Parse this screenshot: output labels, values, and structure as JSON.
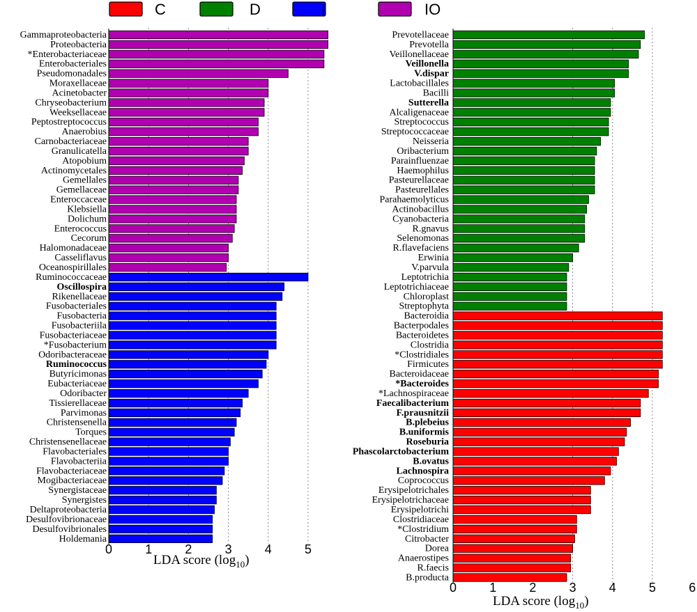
{
  "chart_data": [
    {
      "type": "bar",
      "orientation": "horizontal",
      "panel": "left",
      "xlabel": "LDA score (log",
      "xlabel_sub": "10",
      "xlabel_close": ")",
      "xlim": [
        0,
        5.6
      ],
      "xticks": [
        "0",
        "1",
        "2",
        "3",
        "4",
        "5"
      ],
      "gridlines": [
        1,
        2,
        3,
        4,
        5
      ],
      "bars": [
        {
          "label": "Gammaproteobacteria",
          "value": 5.5,
          "group": "IO",
          "bold": false
        },
        {
          "label": "Proteobacteria",
          "value": 5.5,
          "group": "IO",
          "bold": false
        },
        {
          "label": "*Enterobacteriaceae",
          "value": 5.4,
          "group": "IO",
          "bold": false
        },
        {
          "label": "Enterobacteriales",
          "value": 5.4,
          "group": "IO",
          "bold": false
        },
        {
          "label": "Pseudomonadales",
          "value": 4.5,
          "group": "IO",
          "bold": false
        },
        {
          "label": "Moraxellaceae",
          "value": 4.0,
          "group": "IO",
          "bold": false
        },
        {
          "label": "Acinetobacter",
          "value": 4.0,
          "group": "IO",
          "bold": false
        },
        {
          "label": "Chryseobacterium",
          "value": 3.9,
          "group": "IO",
          "bold": false
        },
        {
          "label": "Weeksellaceae",
          "value": 3.9,
          "group": "IO",
          "bold": false
        },
        {
          "label": "Peptostreptococcus",
          "value": 3.75,
          "group": "IO",
          "bold": false
        },
        {
          "label": "Anaerobius",
          "value": 3.75,
          "group": "IO",
          "bold": false
        },
        {
          "label": "Carnobacteriaceae",
          "value": 3.5,
          "group": "IO",
          "bold": false
        },
        {
          "label": "Granulicatella",
          "value": 3.5,
          "group": "IO",
          "bold": false
        },
        {
          "label": "Atopobium",
          "value": 3.4,
          "group": "IO",
          "bold": false
        },
        {
          "label": "Actinomycetales",
          "value": 3.35,
          "group": "IO",
          "bold": false
        },
        {
          "label": "Gemellales",
          "value": 3.25,
          "group": "IO",
          "bold": false
        },
        {
          "label": "Gemellaceae",
          "value": 3.25,
          "group": "IO",
          "bold": false
        },
        {
          "label": "Enteroccaceae",
          "value": 3.2,
          "group": "IO",
          "bold": false
        },
        {
          "label": "Klebsiella",
          "value": 3.2,
          "group": "IO",
          "bold": false
        },
        {
          "label": "Dolichum",
          "value": 3.2,
          "group": "IO",
          "bold": false
        },
        {
          "label": "Enterococcus",
          "value": 3.15,
          "group": "IO",
          "bold": false
        },
        {
          "label": "Cecorum",
          "value": 3.1,
          "group": "IO",
          "bold": false
        },
        {
          "label": "Halomonadaceae",
          "value": 3.0,
          "group": "IO",
          "bold": false
        },
        {
          "label": "Casseliflavus",
          "value": 3.0,
          "group": "IO",
          "bold": false
        },
        {
          "label": "Oceanospirillales",
          "value": 2.95,
          "group": "IO",
          "bold": false
        },
        {
          "label": "Ruminococcaceae",
          "value": 5.0,
          "group": "I",
          "bold": false
        },
        {
          "label": "Oscillospira",
          "value": 4.4,
          "group": "I",
          "bold": true
        },
        {
          "label": "Rikenellaceae",
          "value": 4.35,
          "group": "I",
          "bold": false
        },
        {
          "label": "Fusobacteriales",
          "value": 4.2,
          "group": "I",
          "bold": false
        },
        {
          "label": "Fusobacteria",
          "value": 4.2,
          "group": "I",
          "bold": false
        },
        {
          "label": "Fusobacteriila",
          "value": 4.2,
          "group": "I",
          "bold": false
        },
        {
          "label": "Fusobacteriaceae",
          "value": 4.2,
          "group": "I",
          "bold": false
        },
        {
          "label": "*Fusobacterium",
          "value": 4.2,
          "group": "I",
          "bold": false
        },
        {
          "label": "Odoribacteraceae",
          "value": 4.0,
          "group": "I",
          "bold": false
        },
        {
          "label": "Ruminococcus",
          "value": 3.95,
          "group": "I",
          "bold": true
        },
        {
          "label": "Butyricimonas",
          "value": 3.85,
          "group": "I",
          "bold": false
        },
        {
          "label": "Eubacteriaceae",
          "value": 3.75,
          "group": "I",
          "bold": false
        },
        {
          "label": "Odoribacter",
          "value": 3.5,
          "group": "I",
          "bold": false
        },
        {
          "label": "Tissierellaceae",
          "value": 3.35,
          "group": "I",
          "bold": false
        },
        {
          "label": "Parvimonas",
          "value": 3.3,
          "group": "I",
          "bold": false
        },
        {
          "label": "Christensenella",
          "value": 3.2,
          "group": "I",
          "bold": false
        },
        {
          "label": "Torques",
          "value": 3.15,
          "group": "I",
          "bold": false
        },
        {
          "label": "Christensenellaceae",
          "value": 3.05,
          "group": "I",
          "bold": false
        },
        {
          "label": "Flavobacteriales",
          "value": 3.0,
          "group": "I",
          "bold": false
        },
        {
          "label": "Flavobacteriia",
          "value": 3.0,
          "group": "I",
          "bold": false
        },
        {
          "label": "Flavobacteriaceae",
          "value": 2.9,
          "group": "I",
          "bold": false
        },
        {
          "label": "Mogibacteriaceae",
          "value": 2.85,
          "group": "I",
          "bold": false
        },
        {
          "label": "Synergistaceae",
          "value": 2.7,
          "group": "I",
          "bold": false
        },
        {
          "label": "Synergistes",
          "value": 2.7,
          "group": "I",
          "bold": false
        },
        {
          "label": "Deltaproteobacteria",
          "value": 2.65,
          "group": "I",
          "bold": false
        },
        {
          "label": "Desulfovibrionaceae",
          "value": 2.6,
          "group": "I",
          "bold": false
        },
        {
          "label": "Desulfovibrionales",
          "value": 2.6,
          "group": "I",
          "bold": false
        },
        {
          "label": "Holdemania",
          "value": 2.6,
          "group": "I",
          "bold": false
        }
      ]
    },
    {
      "type": "bar",
      "orientation": "horizontal",
      "panel": "right",
      "xlabel": "LDA score (log",
      "xlabel_sub": "10",
      "xlabel_close": ")",
      "xlim": [
        0,
        6
      ],
      "xticks": [
        "0",
        "1",
        "2",
        "3",
        "4",
        "5",
        "6"
      ],
      "gridlines": [
        3,
        4,
        5
      ],
      "bars": [
        {
          "label": "Prevotellaceae",
          "value": 4.8,
          "group": "D",
          "bold": false
        },
        {
          "label": "Prevotella",
          "value": 4.7,
          "group": "D",
          "bold": false
        },
        {
          "label": "Veillonellaceae",
          "value": 4.65,
          "group": "D",
          "bold": false
        },
        {
          "label": "Veillonella",
          "value": 4.4,
          "group": "D",
          "bold": true
        },
        {
          "label": "V.dispar",
          "value": 4.4,
          "group": "D",
          "bold": true
        },
        {
          "label": "Lactobacillales",
          "value": 4.05,
          "group": "D",
          "bold": false
        },
        {
          "label": "Bacilli",
          "value": 4.05,
          "group": "D",
          "bold": false
        },
        {
          "label": "Sutterella",
          "value": 3.95,
          "group": "D",
          "bold": true
        },
        {
          "label": "Alcaligenaceae",
          "value": 3.95,
          "group": "D",
          "bold": false
        },
        {
          "label": "Streptococcus",
          "value": 3.9,
          "group": "D",
          "bold": false
        },
        {
          "label": "Streptococcaceae",
          "value": 3.9,
          "group": "D",
          "bold": false
        },
        {
          "label": "Neisseria",
          "value": 3.7,
          "group": "D",
          "bold": false
        },
        {
          "label": "Oribacterium",
          "value": 3.6,
          "group": "D",
          "bold": false
        },
        {
          "label": "Parainfluenzae",
          "value": 3.55,
          "group": "D",
          "bold": false
        },
        {
          "label": "Haemophilus",
          "value": 3.55,
          "group": "D",
          "bold": false
        },
        {
          "label": "Pasteurellaceae",
          "value": 3.55,
          "group": "D",
          "bold": false
        },
        {
          "label": "Pasteurellales",
          "value": 3.55,
          "group": "D",
          "bold": false
        },
        {
          "label": "Parahaemolyticus",
          "value": 3.4,
          "group": "D",
          "bold": false
        },
        {
          "label": "Actinobacillus",
          "value": 3.35,
          "group": "D",
          "bold": false
        },
        {
          "label": "Cyanobacteria",
          "value": 3.3,
          "group": "D",
          "bold": false
        },
        {
          "label": "R.gnavus",
          "value": 3.3,
          "group": "D",
          "bold": false
        },
        {
          "label": "Selenomonas",
          "value": 3.3,
          "group": "D",
          "bold": false
        },
        {
          "label": "R.flavefaciens",
          "value": 3.15,
          "group": "D",
          "bold": false
        },
        {
          "label": "Erwinia",
          "value": 3.0,
          "group": "D",
          "bold": false
        },
        {
          "label": "V.parvula",
          "value": 2.9,
          "group": "D",
          "bold": false
        },
        {
          "label": "Leptotrichia",
          "value": 2.85,
          "group": "D",
          "bold": false
        },
        {
          "label": "Leptotrichiaceae",
          "value": 2.85,
          "group": "D",
          "bold": false
        },
        {
          "label": "Chloroplast",
          "value": 2.85,
          "group": "D",
          "bold": false
        },
        {
          "label": "Streptophyta",
          "value": 2.85,
          "group": "D",
          "bold": false
        },
        {
          "label": "Bacteroidia",
          "value": 5.25,
          "group": "C",
          "bold": false
        },
        {
          "label": "Bacterpodales",
          "value": 5.25,
          "group": "C",
          "bold": false
        },
        {
          "label": "Bacteroidetes",
          "value": 5.25,
          "group": "C",
          "bold": false
        },
        {
          "label": "Clostridia",
          "value": 5.25,
          "group": "C",
          "bold": false
        },
        {
          "label": "*Clostridiales",
          "value": 5.25,
          "group": "C",
          "bold": false
        },
        {
          "label": "Firmicutes",
          "value": 5.25,
          "group": "C",
          "bold": false
        },
        {
          "label": "Bacteroidaceae",
          "value": 5.15,
          "group": "C",
          "bold": false
        },
        {
          "label": "*Bacteroides",
          "value": 5.15,
          "group": "C",
          "bold": true
        },
        {
          "label": "*Lachnospiraceae",
          "value": 4.9,
          "group": "C",
          "bold": false
        },
        {
          "label": "Faecalibacterium",
          "value": 4.7,
          "group": "C",
          "bold": true
        },
        {
          "label": "F.prausnitzii",
          "value": 4.7,
          "group": "C",
          "bold": true
        },
        {
          "label": "B.plebeius",
          "value": 4.45,
          "group": "C",
          "bold": true
        },
        {
          "label": "B.uniformis",
          "value": 4.35,
          "group": "C",
          "bold": true
        },
        {
          "label": "Roseburia",
          "value": 4.3,
          "group": "C",
          "bold": true
        },
        {
          "label": "Phascolarctobacterium",
          "value": 4.15,
          "group": "C",
          "bold": true
        },
        {
          "label": "B.ovatus",
          "value": 4.1,
          "group": "C",
          "bold": true
        },
        {
          "label": "Lachnospira",
          "value": 3.95,
          "group": "C",
          "bold": true
        },
        {
          "label": "Coprococcus",
          "value": 3.8,
          "group": "C",
          "bold": false
        },
        {
          "label": "Erysipelotrichales",
          "value": 3.45,
          "group": "C",
          "bold": false
        },
        {
          "label": "Erysipelotrichaceae",
          "value": 3.45,
          "group": "C",
          "bold": false
        },
        {
          "label": "Erysipelotrichi",
          "value": 3.45,
          "group": "C",
          "bold": false
        },
        {
          "label": "Clostridiaceae",
          "value": 3.1,
          "group": "C",
          "bold": false
        },
        {
          "label": "*Clostridium",
          "value": 3.1,
          "group": "C",
          "bold": false
        },
        {
          "label": "Citrobacter",
          "value": 3.05,
          "group": "C",
          "bold": false
        },
        {
          "label": "Dorea",
          "value": 3.0,
          "group": "C",
          "bold": false
        },
        {
          "label": "Anaerostipes",
          "value": 2.95,
          "group": "C",
          "bold": false
        },
        {
          "label": "R.faecis",
          "value": 2.95,
          "group": "C",
          "bold": false
        },
        {
          "label": "B.producta",
          "value": 2.85,
          "group": "C",
          "bold": false
        }
      ]
    }
  ],
  "legend": {
    "placement": "top",
    "entries": [
      {
        "key": "C",
        "label": "C",
        "color": "#ff0000"
      },
      {
        "key": "D",
        "label": "D",
        "color": "#008000"
      },
      {
        "key": "I",
        "label": "I",
        "color": "#0000ff"
      },
      {
        "key": "IO",
        "label": "IO",
        "color": "#b000b0"
      }
    ]
  },
  "colors": {
    "C": "#ff0000",
    "D": "#008000",
    "I": "#0000ff",
    "IO": "#b000b0",
    "grid": "#888888",
    "bar_edge": "#000000"
  }
}
